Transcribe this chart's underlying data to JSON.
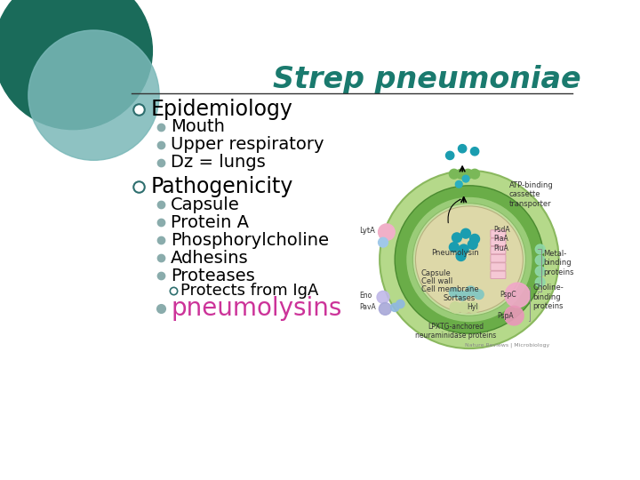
{
  "title": "Strep pneumoniae",
  "title_color": "#1a7a6e",
  "title_fontstyle": "italic",
  "title_fontsize": 24,
  "bg_color": "#ffffff",
  "line_color": "#333333",
  "bullet_color_main": "#2d6e6e",
  "bullet_color_sub": "#8aacac",
  "section1_header": "Epidemiology",
  "section1_items": [
    "Mouth",
    "Upper respiratory",
    "Dz = lungs"
  ],
  "section2_header": "Pathogenicity",
  "section2_items": [
    "Capsule",
    "Protein A",
    "Phosphorylcholine",
    "Adhesins",
    "Proteases"
  ],
  "sub_sub_item": "Protects from IgA",
  "highlight_item": "pneumolysins",
  "highlight_color": "#cc3399",
  "text_color": "#000000",
  "circle_dark": "#1a6b5a",
  "circle_light": "#7ab8b8",
  "header_fontsize": 17,
  "item_fontsize": 14,
  "highlight_fontsize": 20
}
